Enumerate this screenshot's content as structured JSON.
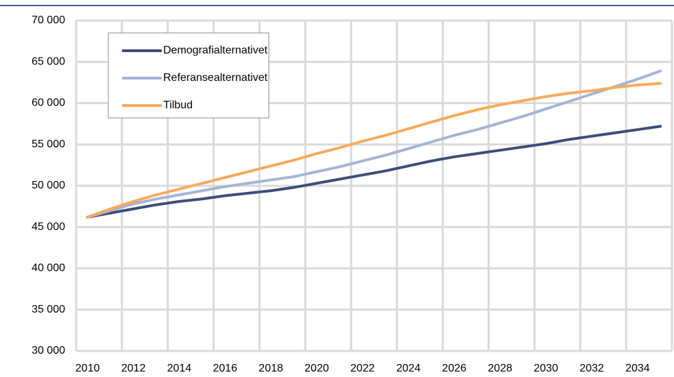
{
  "chart_data": {
    "type": "line",
    "categories": [
      "2010",
      null,
      "2012",
      null,
      "2014",
      null,
      "2016",
      null,
      "2018",
      null,
      "2020",
      null,
      "2022",
      null,
      "2024",
      null,
      "2026",
      null,
      "2028",
      null,
      "2030",
      null,
      "2032",
      null,
      "2034",
      null
    ],
    "series": [
      {
        "name": "Demografialternativet",
        "color": "#3c4d7a",
        "values": [
          46200,
          46700,
          47200,
          47700,
          48100,
          48400,
          48800,
          49100,
          49400,
          49800,
          50300,
          50800,
          51300,
          51800,
          52400,
          53000,
          53500,
          53900,
          54300,
          54700,
          55100,
          55600,
          56000,
          56400,
          56800,
          57200
        ]
      },
      {
        "name": "Referansealternativet",
        "color": "#a4b4d6",
        "values": [
          46200,
          47000,
          47800,
          48400,
          48900,
          49400,
          49900,
          50300,
          50700,
          51100,
          51700,
          52300,
          53000,
          53700,
          54500,
          55300,
          56100,
          56800,
          57600,
          58400,
          59300,
          60200,
          61100,
          62000,
          62900,
          63900
        ]
      },
      {
        "name": "Tilbud",
        "color": "#f9a95a",
        "values": [
          46200,
          47200,
          48100,
          48900,
          49600,
          50300,
          51000,
          51700,
          52400,
          53100,
          53900,
          54600,
          55400,
          56100,
          56900,
          57700,
          58500,
          59200,
          59800,
          60300,
          60800,
          61200,
          61500,
          61900,
          62200,
          62400
        ]
      }
    ],
    "ylim": [
      30000,
      70000
    ],
    "yticks": [
      {
        "value": 30000,
        "label": "30 000"
      },
      {
        "value": 35000,
        "label": "35 000"
      },
      {
        "value": 40000,
        "label": "40 000"
      },
      {
        "value": 45000,
        "label": "45 000"
      },
      {
        "value": 50000,
        "label": "50 000"
      },
      {
        "value": 55000,
        "label": "55 000"
      },
      {
        "value": 60000,
        "label": "60 000"
      },
      {
        "value": 65000,
        "label": "65 000"
      },
      {
        "value": 70000,
        "label": "70 000"
      }
    ],
    "grid": true
  }
}
